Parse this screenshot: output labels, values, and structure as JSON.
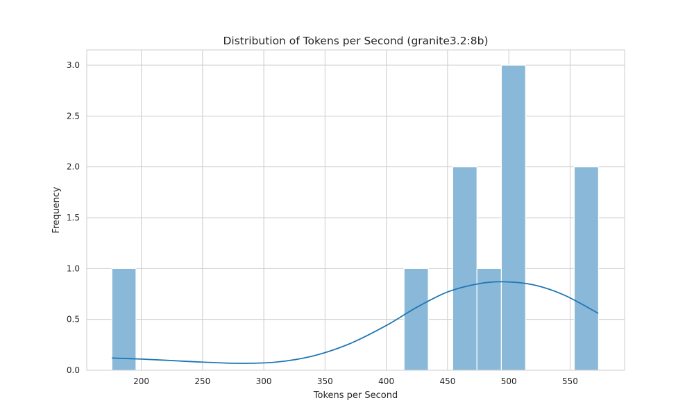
{
  "chart_data": {
    "type": "bar",
    "title": "Distribution of Tokens per Second (granite3.2:8b)",
    "xlabel": "Tokens per Second",
    "ylabel": "Frequency",
    "xlim": [
      155.5,
      594.5
    ],
    "ylim": [
      0,
      3.15
    ],
    "xticks": [
      200,
      250,
      300,
      350,
      400,
      450,
      500,
      550
    ],
    "yticks": [
      0.0,
      0.5,
      1.0,
      1.5,
      2.0,
      2.5,
      3.0
    ],
    "xtick_labels": [
      "200",
      "250",
      "300",
      "350",
      "400",
      "450",
      "500",
      "550"
    ],
    "ytick_labels": [
      "0.0",
      "0.5",
      "1.0",
      "1.5",
      "2.0",
      "2.5",
      "3.0"
    ],
    "grid": true,
    "legend": "none",
    "bins": [
      {
        "x0": 176,
        "x1": 195.7,
        "count": 1
      },
      {
        "x0": 414.5,
        "x1": 434.3,
        "count": 1
      },
      {
        "x0": 454.2,
        "x1": 474,
        "count": 2
      },
      {
        "x0": 474,
        "x1": 493.9,
        "count": 1
      },
      {
        "x0": 493.9,
        "x1": 513.7,
        "count": 3
      },
      {
        "x0": 553.4,
        "x1": 573.2,
        "count": 2
      }
    ],
    "kde": {
      "x": [
        176,
        200,
        225,
        250,
        280,
        310,
        340,
        370,
        400,
        425,
        450,
        475,
        495,
        520,
        545,
        573
      ],
      "y": [
        0.12,
        0.11,
        0.095,
        0.08,
        0.068,
        0.08,
        0.14,
        0.26,
        0.44,
        0.62,
        0.77,
        0.85,
        0.87,
        0.84,
        0.74,
        0.56
      ]
    },
    "colors": {
      "bar_fill": "#8ab8d8",
      "bar_stroke": "#ffffff",
      "kde_line": "#1f77b4",
      "grid": "#cccccc",
      "frame": "#cccccc"
    }
  }
}
